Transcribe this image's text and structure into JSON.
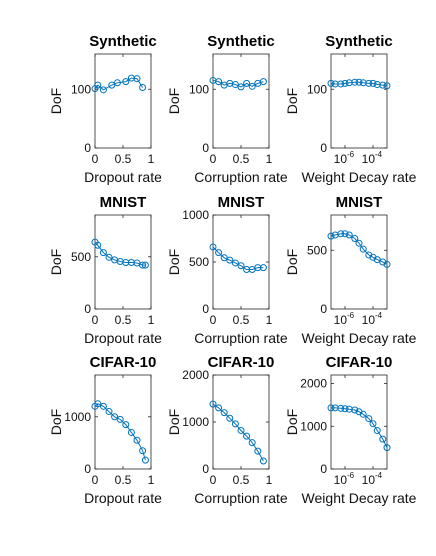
{
  "chart_data": [
    {
      "type": "line",
      "title": "Synthetic",
      "xlabel": "Dropout rate",
      "ylabel": "DoF",
      "xscale": "linear",
      "xlim": [
        0,
        1
      ],
      "ylim": [
        0,
        160
      ],
      "xticks": [
        {
          "v": 0,
          "label": "0"
        },
        {
          "v": 0.5,
          "label": "0.5"
        },
        {
          "v": 1,
          "label": "1"
        }
      ],
      "yticks": [
        {
          "v": 0,
          "label": "0"
        },
        {
          "v": 100,
          "label": "100"
        }
      ],
      "x": [
        0,
        0.05,
        0.15,
        0.3,
        0.4,
        0.55,
        0.65,
        0.75,
        0.85
      ],
      "y": [
        101,
        107,
        99,
        107,
        111,
        113,
        119,
        118,
        103
      ]
    },
    {
      "type": "line",
      "title": "Synthetic",
      "xlabel": "Corruption rate",
      "ylabel": "DoF",
      "xscale": "linear",
      "xlim": [
        0,
        1
      ],
      "ylim": [
        0,
        160
      ],
      "xticks": [
        {
          "v": 0,
          "label": "0"
        },
        {
          "v": 0.5,
          "label": "0.5"
        },
        {
          "v": 1,
          "label": "1"
        }
      ],
      "yticks": [
        {
          "v": 0,
          "label": "0"
        },
        {
          "v": 100,
          "label": "100"
        }
      ],
      "x": [
        0,
        0.1,
        0.2,
        0.3,
        0.4,
        0.5,
        0.6,
        0.7,
        0.8,
        0.9
      ],
      "y": [
        115,
        113,
        107,
        110,
        108,
        104,
        110,
        105,
        110,
        113
      ]
    },
    {
      "type": "line",
      "title": "Synthetic",
      "xlabel": "Weight Decay rate",
      "ylabel": "DoF",
      "xscale": "log",
      "xlim": [
        1e-07,
        0.001
      ],
      "ylim": [
        0,
        160
      ],
      "xticks": [
        {
          "v": 1e-06,
          "label": "10",
          "exp": "-6"
        },
        {
          "v": 0.0001,
          "label": "10",
          "exp": "-4"
        }
      ],
      "yticks": [
        {
          "v": 0,
          "label": "0"
        },
        {
          "v": 100,
          "label": "100"
        }
      ],
      "x": [
        1e-07,
        2e-07,
        5e-07,
        1e-06,
        2e-06,
        5e-06,
        1e-05,
        2e-05,
        5e-05,
        0.0001,
        0.0002,
        0.0005,
        0.001
      ],
      "y": [
        110,
        109,
        109,
        110,
        111,
        112,
        112,
        111,
        110,
        110,
        108,
        107,
        106
      ]
    },
    {
      "type": "line",
      "title": "MNIST",
      "xlabel": "Dropout rate",
      "ylabel": "DoF",
      "xscale": "linear",
      "xlim": [
        0,
        1
      ],
      "ylim": [
        0,
        900
      ],
      "xticks": [
        {
          "v": 0,
          "label": "0"
        },
        {
          "v": 0.5,
          "label": "0.5"
        },
        {
          "v": 1,
          "label": "1"
        }
      ],
      "yticks": [
        {
          "v": 0,
          "label": "0"
        },
        {
          "v": 500,
          "label": "500"
        }
      ],
      "x": [
        0,
        0.05,
        0.15,
        0.25,
        0.35,
        0.45,
        0.55,
        0.65,
        0.75,
        0.85,
        0.9
      ],
      "y": [
        640,
        610,
        540,
        495,
        470,
        455,
        445,
        445,
        440,
        420,
        420
      ]
    },
    {
      "type": "line",
      "title": "MNIST",
      "xlabel": "Corruption rate",
      "ylabel": "DoF",
      "xscale": "linear",
      "xlim": [
        0,
        1
      ],
      "ylim": [
        0,
        1000
      ],
      "xticks": [
        {
          "v": 0,
          "label": "0"
        },
        {
          "v": 0.5,
          "label": "0.5"
        },
        {
          "v": 1,
          "label": "1"
        }
      ],
      "yticks": [
        {
          "v": 0,
          "label": "0"
        },
        {
          "v": 500,
          "label": "500"
        },
        {
          "v": 1000,
          "label": "1000"
        }
      ],
      "x": [
        0,
        0.1,
        0.2,
        0.3,
        0.4,
        0.5,
        0.6,
        0.7,
        0.8,
        0.9
      ],
      "y": [
        660,
        600,
        545,
        520,
        490,
        460,
        420,
        420,
        440,
        440
      ]
    },
    {
      "type": "line",
      "title": "MNIST",
      "xlabel": "Weight Decay rate",
      "ylabel": "DoF",
      "xscale": "log",
      "xlim": [
        1e-07,
        0.001
      ],
      "ylim": [
        0,
        800
      ],
      "xticks": [
        {
          "v": 1e-06,
          "label": "10",
          "exp": "-6"
        },
        {
          "v": 0.0001,
          "label": "10",
          "exp": "-4"
        }
      ],
      "yticks": [
        {
          "v": 0,
          "label": "0"
        },
        {
          "v": 500,
          "label": "500"
        }
      ],
      "x": [
        1e-07,
        2e-07,
        5e-07,
        1e-06,
        2e-06,
        5e-06,
        1e-05,
        2e-05,
        5e-05,
        0.0001,
        0.0002,
        0.0005,
        0.001
      ],
      "y": [
        620,
        630,
        640,
        640,
        630,
        600,
        560,
        510,
        460,
        440,
        420,
        400,
        380
      ]
    },
    {
      "type": "line",
      "title": "CIFAR-10",
      "xlabel": "Dropout rate",
      "ylabel": "DoF",
      "xscale": "linear",
      "xlim": [
        0,
        1
      ],
      "ylim": [
        0,
        1800
      ],
      "xticks": [
        {
          "v": 0,
          "label": "0"
        },
        {
          "v": 0.5,
          "label": "0.5"
        },
        {
          "v": 1,
          "label": "1"
        }
      ],
      "yticks": [
        {
          "v": 0,
          "label": "0"
        },
        {
          "v": 1000,
          "label": "1000"
        }
      ],
      "x": [
        0,
        0.05,
        0.15,
        0.25,
        0.35,
        0.45,
        0.55,
        0.65,
        0.75,
        0.85,
        0.9
      ],
      "y": [
        1200,
        1250,
        1200,
        1100,
        1000,
        950,
        850,
        700,
        550,
        350,
        170
      ]
    },
    {
      "type": "line",
      "title": "CIFAR-10",
      "xlabel": "Corruption rate",
      "ylabel": "DoF",
      "xscale": "linear",
      "xlim": [
        0,
        1
      ],
      "ylim": [
        0,
        2000
      ],
      "xticks": [
        {
          "v": 0,
          "label": "0"
        },
        {
          "v": 0.5,
          "label": "0.5"
        },
        {
          "v": 1,
          "label": "1"
        }
      ],
      "yticks": [
        {
          "v": 0,
          "label": "0"
        },
        {
          "v": 1000,
          "label": "1000"
        },
        {
          "v": 2000,
          "label": "2000"
        }
      ],
      "x": [
        0,
        0.1,
        0.2,
        0.3,
        0.4,
        0.5,
        0.6,
        0.7,
        0.8,
        0.9
      ],
      "y": [
        1380,
        1300,
        1200,
        1080,
        960,
        820,
        700,
        560,
        380,
        170
      ]
    },
    {
      "type": "line",
      "title": "CIFAR-10",
      "xlabel": "Weight Decay rate",
      "ylabel": "DoF",
      "xscale": "log",
      "xlim": [
        1e-07,
        0.001
      ],
      "ylim": [
        0,
        2200
      ],
      "xticks": [
        {
          "v": 1e-06,
          "label": "10",
          "exp": "-6"
        },
        {
          "v": 0.0001,
          "label": "10",
          "exp": "-4"
        }
      ],
      "yticks": [
        {
          "v": 0,
          "label": "0"
        },
        {
          "v": 1000,
          "label": "1000"
        },
        {
          "v": 2000,
          "label": "2000"
        }
      ],
      "x": [
        1e-07,
        2e-07,
        5e-07,
        1e-06,
        2e-06,
        5e-06,
        1e-05,
        2e-05,
        5e-05,
        0.0001,
        0.0002,
        0.0005,
        0.001
      ],
      "y": [
        1430,
        1430,
        1420,
        1410,
        1400,
        1380,
        1340,
        1280,
        1180,
        1060,
        900,
        700,
        500
      ]
    }
  ],
  "colors": {
    "series": "#0072BD",
    "axes": "#262626"
  }
}
